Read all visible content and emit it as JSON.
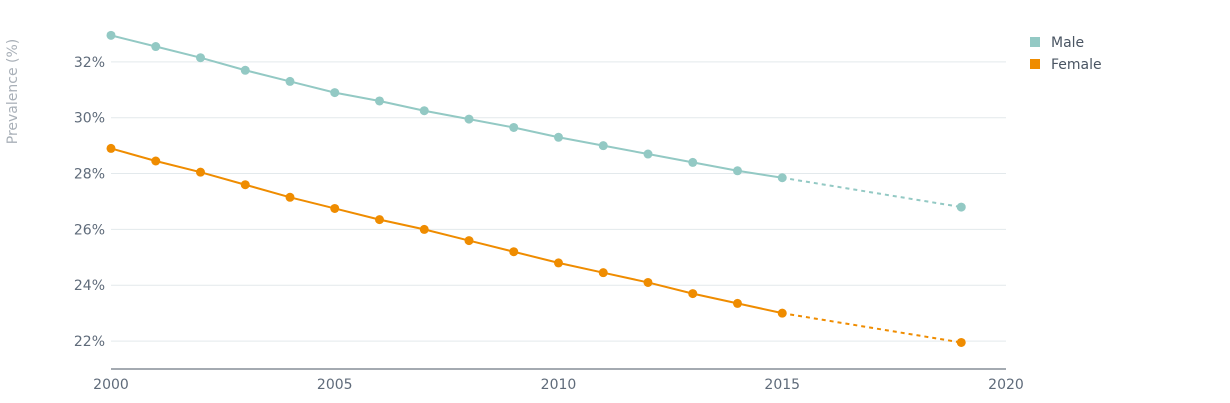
{
  "chart_data": {
    "type": "line",
    "ylabel": "Prevalence (%)",
    "xlabel": "",
    "title": "",
    "xlim": [
      2000,
      2020
    ],
    "ylim": [
      21,
      33.5
    ],
    "x_ticks": [
      2000,
      2005,
      2010,
      2015,
      2020
    ],
    "y_ticks": [
      22,
      24,
      26,
      28,
      30,
      32
    ],
    "y_tick_labels": [
      "22%",
      "24%",
      "26%",
      "28%",
      "30%",
      "32%"
    ],
    "grid": true,
    "legend_position": "top-right",
    "projection_from": 2015,
    "series": [
      {
        "name": "Male",
        "color": "#93c9c4",
        "x": [
          2000,
          2001,
          2002,
          2003,
          2004,
          2005,
          2006,
          2007,
          2008,
          2009,
          2010,
          2011,
          2012,
          2013,
          2014,
          2015,
          2019
        ],
        "values": [
          32.95,
          32.55,
          32.15,
          31.7,
          31.3,
          30.9,
          30.6,
          30.25,
          29.95,
          29.65,
          29.3,
          29.0,
          28.7,
          28.4,
          28.1,
          27.85,
          26.8
        ]
      },
      {
        "name": "Female",
        "color": "#ef8c00",
        "x": [
          2000,
          2001,
          2002,
          2003,
          2004,
          2005,
          2006,
          2007,
          2008,
          2009,
          2010,
          2011,
          2012,
          2013,
          2014,
          2015,
          2019
        ],
        "values": [
          28.9,
          28.45,
          28.05,
          27.6,
          27.15,
          26.75,
          26.35,
          26.0,
          25.6,
          25.2,
          24.8,
          24.45,
          24.1,
          23.7,
          23.35,
          23.0,
          21.95
        ]
      }
    ]
  }
}
